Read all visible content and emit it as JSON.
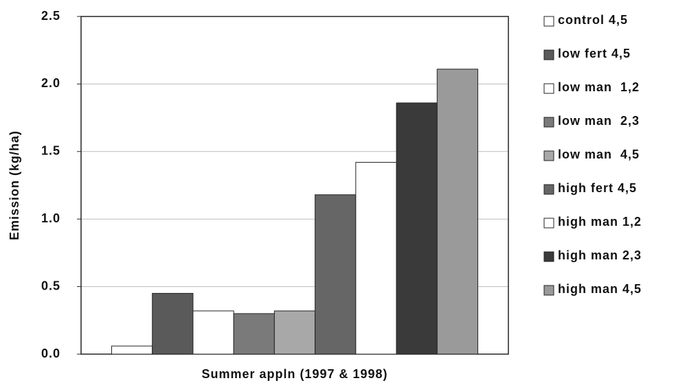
{
  "chart_data": {
    "type": "bar",
    "categories": [
      "Summer appln (1997 & 1998)"
    ],
    "ylabel": "Emission (kg/ha)",
    "ylim": [
      0,
      2.5
    ],
    "yticks": [
      {
        "value": 0,
        "label": "0.0"
      },
      0.5,
      {
        "value": 1,
        "label": "1.0"
      },
      1.5,
      {
        "value": 2,
        "label": "2.0"
      },
      2.5
    ],
    "grid": true,
    "legend": "right",
    "series": [
      {
        "name": "control 4,5",
        "color": "#ffffff",
        "values": [
          0.06
        ]
      },
      {
        "name": "low fert 4,5",
        "color": "#5a5a5a",
        "values": [
          0.45
        ]
      },
      {
        "name": "low man  1,2",
        "color": "#ffffff",
        "values": [
          0.32
        ]
      },
      {
        "name": "low man  2,3",
        "color": "#7a7a7a",
        "values": [
          0.3
        ]
      },
      {
        "name": "low man  4,5",
        "color": "#a8a8a8",
        "values": [
          0.32
        ]
      },
      {
        "name": "high fert 4,5",
        "color": "#666666",
        "values": [
          1.18
        ]
      },
      {
        "name": "high man 1,2",
        "color": "#ffffff",
        "values": [
          1.42
        ]
      },
      {
        "name": "high man 2,3",
        "color": "#3a3a3a",
        "values": [
          1.86
        ]
      },
      {
        "name": "high man 4,5",
        "color": "#9a9a9a",
        "values": [
          2.11
        ]
      }
    ]
  }
}
